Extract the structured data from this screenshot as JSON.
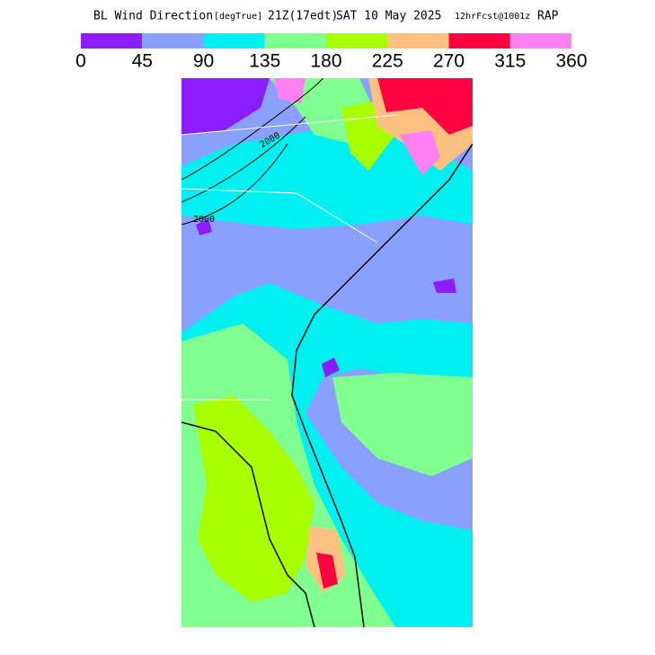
{
  "header": {
    "title": "BL Wind Direction",
    "units": "[degTrue]",
    "time": "21Z(17edt)",
    "date": "SAT 10 May 2025",
    "forecast": "12hrFcst@1001z",
    "model": "RAP"
  },
  "colorbar": {
    "range": [
      0,
      360
    ],
    "ticks": [
      0,
      45,
      90,
      135,
      180,
      225,
      270,
      315,
      360
    ],
    "colors": [
      "#8a1cff",
      "#8aa0ff",
      "#00f0f0",
      "#80ff90",
      "#a8ff00",
      "#ffc080",
      "#ff0040",
      "#ff80f0"
    ]
  },
  "map": {
    "contour_label": "2000"
  }
}
